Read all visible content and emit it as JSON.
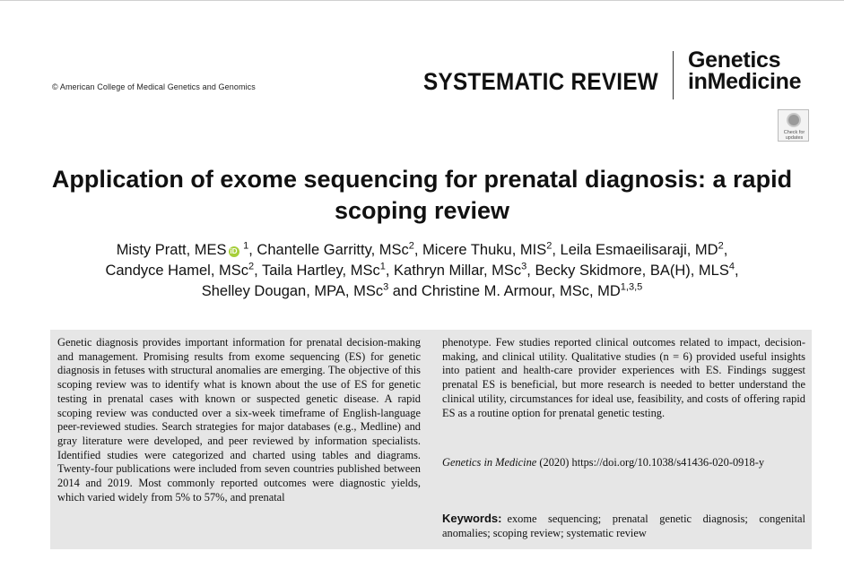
{
  "header": {
    "copyright": "© American College of Medical Genetics and Genomics",
    "article_type": "SYSTEMATIC REVIEW",
    "journal_line1": "Genetics",
    "journal_line2": "inMedicine",
    "check_updates": "Check for updates"
  },
  "title": "Application of exome sequencing for prenatal diagnosis: a rapid scoping review",
  "authors": {
    "a1": "Misty Pratt, MES",
    "a1_aff": "1",
    "a2": ", Chantelle Garritty, MSc",
    "a2_aff": "2",
    "a3": ", Micere Thuku, MIS",
    "a3_aff": "2",
    "a4": ", Leila Esmaeilisaraji, MD",
    "a4_aff": "2",
    "a4_tail": ",",
    "a5": "Candyce Hamel, MSc",
    "a5_aff": "2",
    "a6": ", Taila Hartley, MSc",
    "a6_aff": "1",
    "a7": ", Kathryn Millar, MSc",
    "a7_aff": "3",
    "a8": ", Becky Skidmore, BA(H), MLS",
    "a8_aff": "4",
    "a8_tail": ",",
    "a9": "Shelley Dougan, MPA, MSc",
    "a9_aff": "3",
    "a10": " and Christine M. Armour, MSc, MD",
    "a10_aff": "1,3,5",
    "orcid_glyph": "iD"
  },
  "abstract": {
    "left": "Genetic diagnosis provides important information for prenatal decision-making and management. Promising results from exome sequencing (ES) for genetic diagnosis in fetuses with structural anomalies are emerging. The objective of this scoping review was to identify what is known about the use of ES for genetic testing in prenatal cases with known or suspected genetic disease. A rapid scoping review was conducted over a six-week timeframe of English-language peer-reviewed studies. Search strategies for major databases (e.g., Medline) and gray literature were developed, and peer reviewed by information specialists. Identified studies were categorized and charted using tables and diagrams. Twenty-four publications were included from seven countries published between 2014 and 2019. Most commonly reported outcomes were diagnostic yields, which varied widely from 5% to 57%, and prenatal",
    "right": "phenotype. Few studies reported clinical outcomes related to impact, decision-making, and clinical utility. Qualitative studies (n = 6) provided useful insights into patient and health-care provider experiences with ES. Findings suggest prenatal ES is beneficial, but more research is needed to better understand the clinical utility, circumstances for ideal use, feasibility, and costs of offering rapid ES as a routine option for prenatal genetic testing.",
    "citation_journal": "Genetics in Medicine",
    "citation_rest": " (2020) https://doi.org/10.1038/s41436-020-0918-y",
    "keywords_label": "Keywords:",
    "keywords": "exome sequencing; prenatal genetic diagnosis; congenital anomalies; scoping review; systematic review"
  }
}
